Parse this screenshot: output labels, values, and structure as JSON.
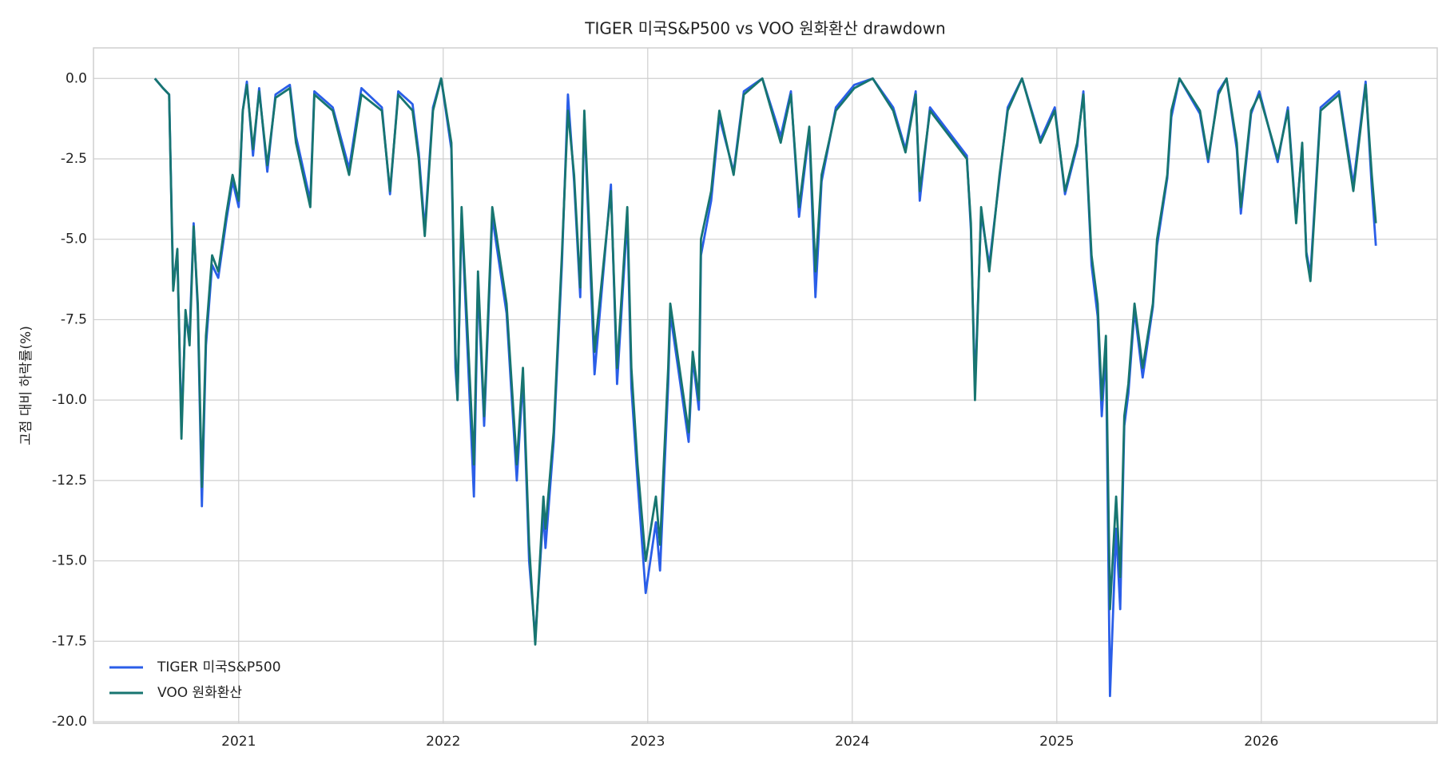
{
  "chart_data": {
    "type": "line",
    "title": "TIGER 미국S&P500 vs VOO 원화환산 drawdown",
    "y_label": "고점 대비 하락률(%)",
    "x": [
      2020.59,
      2020.63,
      2020.66,
      2020.68,
      2020.7,
      2020.72,
      2020.74,
      2020.76,
      2020.78,
      2020.8,
      2020.82,
      2020.84,
      2020.87,
      2020.9,
      2020.94,
      2020.97,
      2021.0,
      2021.02,
      2021.04,
      2021.07,
      2021.1,
      2021.14,
      2021.18,
      2021.25,
      2021.28,
      2021.35,
      2021.37,
      2021.46,
      2021.54,
      2021.6,
      2021.7,
      2021.74,
      2021.78,
      2021.85,
      2021.88,
      2021.91,
      2021.95,
      2021.99,
      2022.04,
      2022.06,
      2022.07,
      2022.09,
      2022.15,
      2022.17,
      2022.2,
      2022.24,
      2022.31,
      2022.36,
      2022.39,
      2022.42,
      2022.45,
      2022.49,
      2022.5,
      2022.54,
      2022.58,
      2022.61,
      2022.64,
      2022.67,
      2022.69,
      2022.74,
      2022.82,
      2022.85,
      2022.9,
      2022.92,
      2022.95,
      2022.99,
      2023.04,
      2023.06,
      2023.1,
      2023.11,
      2023.2,
      2023.22,
      2023.25,
      2023.26,
      2023.31,
      2023.35,
      2023.42,
      2023.47,
      2023.56,
      2023.65,
      2023.7,
      2023.74,
      2023.79,
      2023.82,
      2023.85,
      2023.92,
      2024.01,
      2024.1,
      2024.2,
      2024.26,
      2024.31,
      2024.33,
      2024.38,
      2024.56,
      2024.58,
      2024.6,
      2024.63,
      2024.67,
      2024.72,
      2024.76,
      2024.83,
      2024.92,
      2024.99,
      2025.04,
      2025.1,
      2025.13,
      2025.17,
      2025.2,
      2025.22,
      2025.24,
      2025.26,
      2025.29,
      2025.31,
      2025.33,
      2025.35,
      2025.38,
      2025.42,
      2025.47,
      2025.49,
      2025.54,
      2025.56,
      2025.6,
      2025.7,
      2025.74,
      2025.79,
      2025.83,
      2025.88,
      2025.9,
      2025.95,
      2025.99,
      2026.08,
      2026.13,
      2026.17,
      2026.2,
      2026.22,
      2026.24,
      2026.29,
      2026.38,
      2026.45,
      2026.51,
      2026.54,
      2026.56
    ],
    "series": [
      {
        "name": "TIGER 미국S&P500",
        "color": "#2a5ee8",
        "values": [
          0,
          -0.3,
          -0.5,
          -6.4,
          -5.5,
          -10.8,
          -7.4,
          -8.0,
          -4.5,
          -7.2,
          -13.3,
          -8.3,
          -5.8,
          -6.2,
          -4.4,
          -3.2,
          -4.0,
          -1.0,
          -0.1,
          -2.4,
          -0.3,
          -2.9,
          -0.5,
          -0.2,
          -1.8,
          -3.8,
          -0.4,
          -0.9,
          -2.8,
          -0.3,
          -0.9,
          -3.6,
          -0.4,
          -0.8,
          -2.3,
          -4.7,
          -0.9,
          0,
          -2.2,
          -9.0,
          -10.0,
          -4.2,
          -13.0,
          -6.3,
          -10.8,
          -4.3,
          -7.3,
          -12.5,
          -9.3,
          -15.0,
          -17.4,
          -13.5,
          -14.6,
          -11.3,
          -5.8,
          -0.5,
          -3.2,
          -6.8,
          -1.2,
          -9.2,
          -3.3,
          -9.5,
          -4.3,
          -9.6,
          -12.5,
          -16.0,
          -13.8,
          -15.3,
          -9.5,
          -7.3,
          -11.3,
          -8.7,
          -10.3,
          -5.5,
          -3.8,
          -1.2,
          -2.9,
          -0.4,
          0,
          -1.8,
          -0.4,
          -4.3,
          -1.6,
          -6.8,
          -3.2,
          -0.9,
          -0.2,
          0,
          -0.9,
          -2.2,
          -0.4,
          -3.8,
          -0.9,
          -2.4,
          -4.7,
          -9.6,
          -4.2,
          -5.8,
          -3.1,
          -0.9,
          0,
          -1.9,
          -0.9,
          -3.6,
          -2.1,
          -0.4,
          -5.8,
          -7.4,
          -10.5,
          -8.4,
          -19.2,
          -14.0,
          -16.5,
          -10.8,
          -9.8,
          -7.2,
          -9.3,
          -7.1,
          -5.2,
          -3.1,
          -1.2,
          0,
          -1.1,
          -2.6,
          -0.4,
          0,
          -2.2,
          -4.2,
          -1.1,
          -0.4,
          -2.6,
          -0.9,
          -4.4,
          -2.1,
          -5.4,
          -6.1,
          -0.9,
          -0.4,
          -3.3,
          -0.1,
          -3.4,
          -5.2
        ]
      },
      {
        "name": "VOO 원화환산",
        "color": "#177570",
        "values": [
          0,
          -0.3,
          -0.5,
          -6.6,
          -5.3,
          -11.2,
          -7.2,
          -8.3,
          -4.6,
          -7.0,
          -12.7,
          -8.0,
          -5.5,
          -6.0,
          -4.2,
          -3.0,
          -3.8,
          -1.0,
          -0.2,
          -2.2,
          -0.4,
          -2.7,
          -0.6,
          -0.3,
          -2.0,
          -4.0,
          -0.5,
          -1.0,
          -3.0,
          -0.5,
          -1.0,
          -3.5,
          -0.5,
          -1.0,
          -2.5,
          -4.9,
          -1.0,
          0,
          -2.0,
          -8.5,
          -10.0,
          -4.0,
          -12.0,
          -6.0,
          -10.5,
          -4.0,
          -7.0,
          -12.0,
          -9.0,
          -14.5,
          -17.6,
          -13.0,
          -14.0,
          -11.0,
          -5.5,
          -1.0,
          -3.0,
          -6.5,
          -1.0,
          -8.5,
          -3.5,
          -9.0,
          -4.0,
          -9.0,
          -12.0,
          -15.0,
          -13.0,
          -14.5,
          -9.0,
          -7.0,
          -11.0,
          -8.5,
          -10.0,
          -5.0,
          -3.5,
          -1.0,
          -3.0,
          -0.5,
          0,
          -2.0,
          -0.5,
          -4.0,
          -1.5,
          -6.0,
          -3.0,
          -1.0,
          -0.3,
          0,
          -1.0,
          -2.3,
          -0.5,
          -3.5,
          -1.0,
          -2.5,
          -4.5,
          -10.0,
          -4.0,
          -6.0,
          -3.0,
          -1.0,
          0,
          -2.0,
          -1.0,
          -3.5,
          -2.0,
          -0.5,
          -5.5,
          -7.0,
          -10.0,
          -8.0,
          -16.5,
          -13.0,
          -15.5,
          -10.5,
          -9.5,
          -7.0,
          -9.0,
          -7.0,
          -5.0,
          -3.0,
          -1.0,
          0,
          -1.0,
          -2.5,
          -0.5,
          0,
          -2.0,
          -4.0,
          -1.0,
          -0.5,
          -2.5,
          -1.0,
          -4.5,
          -2.0,
          -5.5,
          -6.3,
          -1.0,
          -0.5,
          -3.5,
          -0.2,
          -3.0,
          -4.5
        ]
      }
    ],
    "xlim": [
      2020.29,
      2026.86
    ],
    "xticks": [
      2021,
      2022,
      2023,
      2024,
      2025,
      2026
    ],
    "ylim": [
      -20.05,
      0.95
    ],
    "yticks": [
      {
        "value": 0,
        "label": "0.0"
      },
      {
        "value": -2.5,
        "label": "-2.5"
      },
      {
        "value": -5,
        "label": "-5.0"
      },
      {
        "value": -7.5,
        "label": "-7.5"
      },
      {
        "value": -10,
        "label": "-10.0"
      },
      {
        "value": -12.5,
        "label": "-12.5"
      },
      {
        "value": -15,
        "label": "-15.0"
      },
      {
        "value": -17.5,
        "label": "-17.5"
      },
      {
        "value": -20,
        "label": "-20.0"
      }
    ],
    "grid": true,
    "legend": "lower left"
  }
}
